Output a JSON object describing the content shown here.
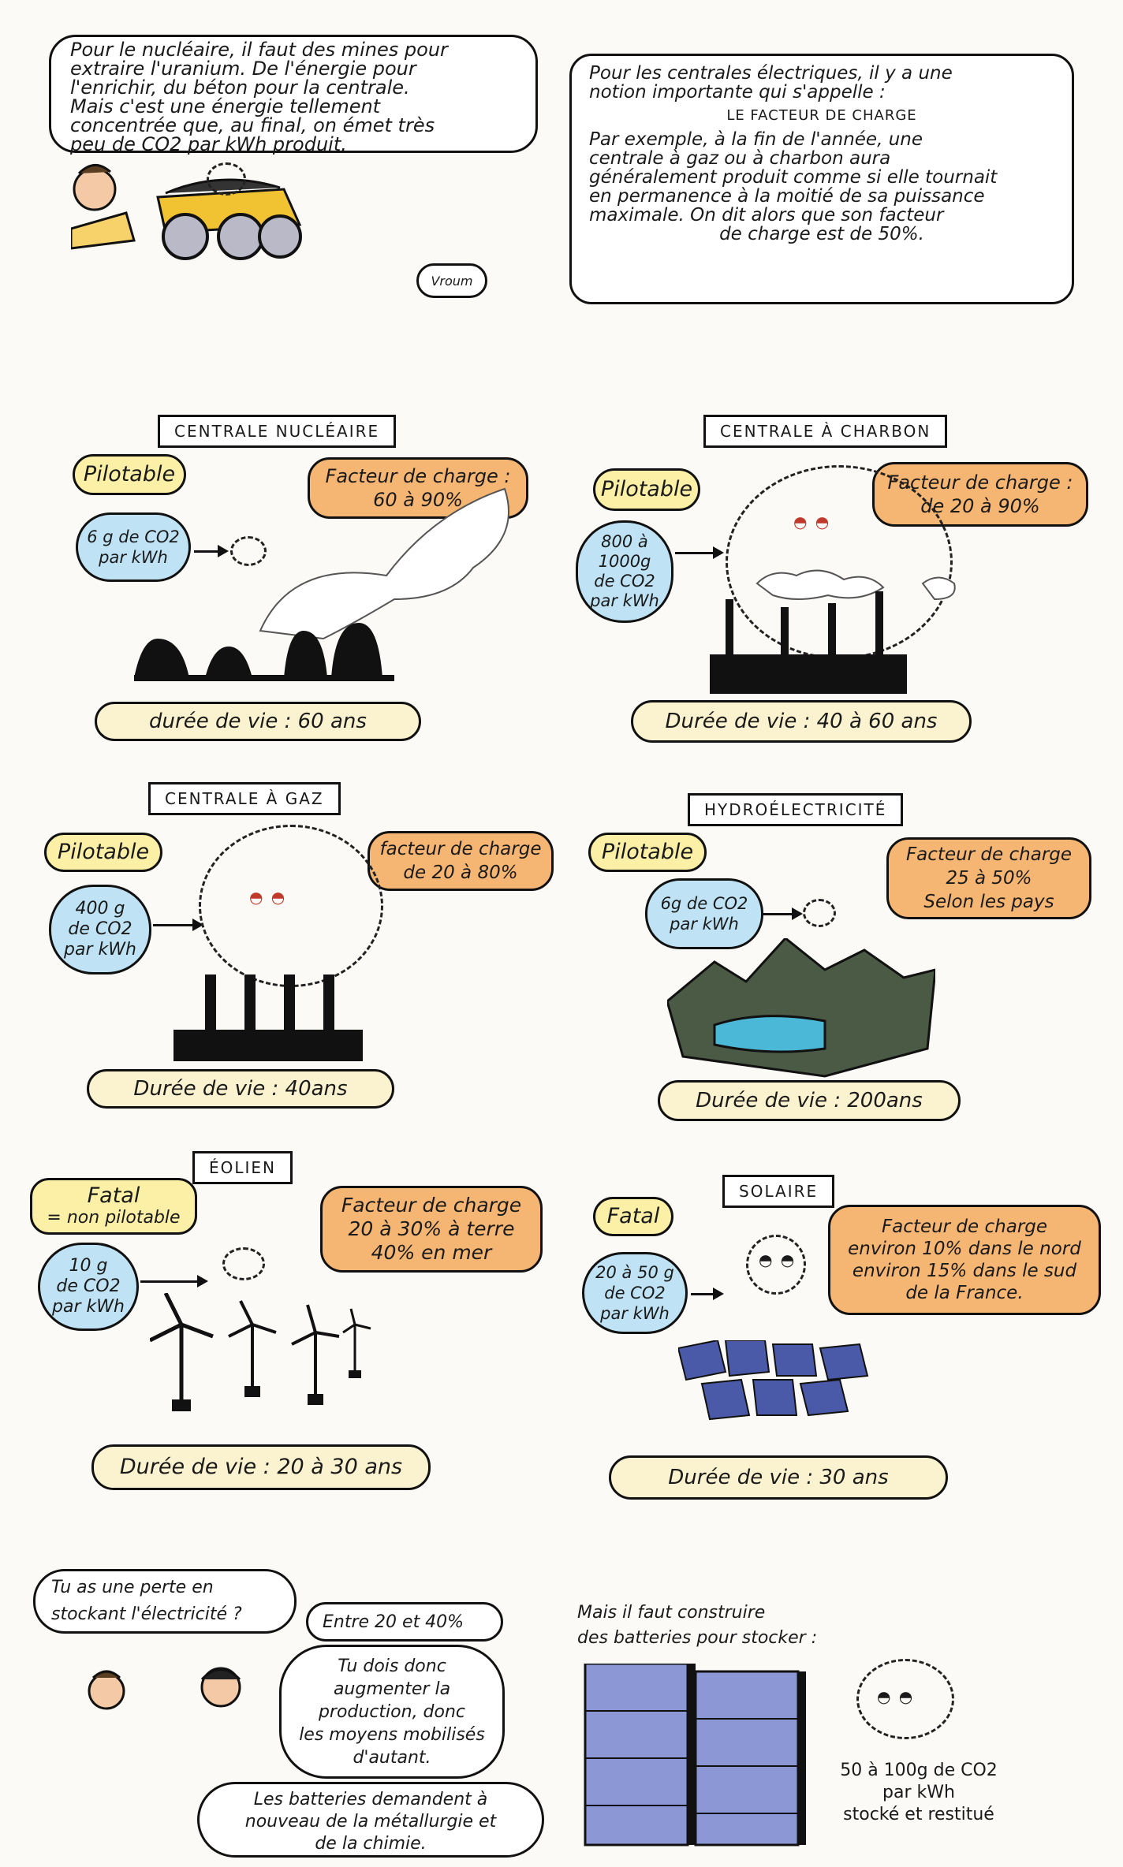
{
  "intro": {
    "left_lines": [
      "Pour le nucléaire, il faut des mines pour",
      "extraire l'uranium. De l'énergie pour",
      "l'enrichir, du béton pour la centrale.",
      "Mais c'est une énergie tellement",
      "concentrée que, au final, on émet très",
      "peu de CO2 par kWh produit."
    ],
    "vroum": "Vroum",
    "right_lines": [
      "Pour les centrales électriques, il y a une",
      "notion importante qui s'appelle :"
    ],
    "right_term": "Le facteur de charge",
    "right_lines2": [
      "Par exemple, à la fin de l'année, une",
      "centrale à gaz ou à charbon aura",
      "généralement produit comme si elle tournait",
      "en permanence à la moitié de sa puissance",
      "maximale. On dit alors que son facteur",
      "de charge est de 50%."
    ]
  },
  "plants": {
    "nuclear": {
      "title": "Centrale nucléaire",
      "tag": "Pilotable",
      "load": [
        "Facteur de charge :",
        "60 à 90%"
      ],
      "co2": [
        "6 g de CO2",
        "par kWh"
      ],
      "life": "durée de vie : 60 ans"
    },
    "coal": {
      "title": "Centrale à charbon",
      "tag": "Pilotable",
      "load": [
        "Facteur de charge :",
        "de 20 à 90%"
      ],
      "co2": [
        "800 à",
        "1000g",
        "de CO2",
        "par kWh"
      ],
      "life": "Durée de vie : 40 à 60 ans"
    },
    "gas": {
      "title": "Centrale à gaz",
      "tag": "Pilotable",
      "load": [
        "facteur de charge",
        "de 20 à 80%"
      ],
      "co2": [
        "400 g",
        "de CO2",
        "par kWh"
      ],
      "life": "Durée de vie : 40ans"
    },
    "hydro": {
      "title": "Hydroélectricité",
      "tag": "Pilotable",
      "load": [
        "Facteur de charge",
        "25 à 50%",
        "Selon les pays"
      ],
      "co2": [
        "6g de CO2",
        "par kWh"
      ],
      "life": "Durée de vie : 200ans"
    },
    "wind": {
      "title": "Éolien",
      "tag": "Fatal",
      "tag_sub": "= non pilotable",
      "load": [
        "Facteur de charge",
        "20 à 30% à terre",
        "40% en mer"
      ],
      "co2": [
        "10 g",
        "de CO2",
        "par kWh"
      ],
      "life": "Durée de vie : 20 à 30 ans"
    },
    "solar": {
      "title": "Solaire",
      "tag": "Fatal",
      "load": [
        "Facteur de charge",
        "environ 10% dans le nord",
        "environ 15% dans le sud",
        "de la France."
      ],
      "co2": [
        "20 à 50 g",
        "de CO2",
        "par kWh"
      ],
      "life": "Durée de vie : 30 ans"
    }
  },
  "dialog": {
    "q": [
      "Tu as une perte en",
      "stockant l'électricité ?"
    ],
    "a": "Entre 20 et 40%",
    "b": [
      "Tu dois donc",
      "augmenter la",
      "production, donc",
      "les moyens mobilisés",
      "d'autant."
    ],
    "c": [
      "Les batteries demandent à",
      "nouveau de la métallurgie et",
      "de la chimie."
    ],
    "caption": [
      "Mais il faut construire",
      "des batteries pour stocker :"
    ],
    "battery_co2": [
      "50 à 100g de CO2",
      "par kWh",
      "stocké et restitué"
    ]
  },
  "colors": {
    "yellow": "#fbf0a6",
    "orange": "#f6b673",
    "blue": "#bfe3f4",
    "cream": "#fbf3cf"
  }
}
